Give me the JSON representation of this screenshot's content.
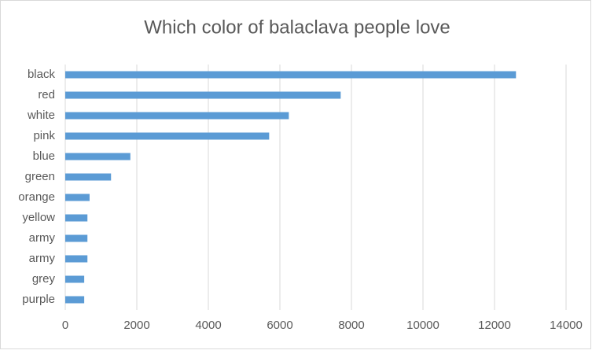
{
  "chart_data": {
    "type": "bar",
    "orientation": "horizontal",
    "title": "Which color of balaclava people love",
    "categories": [
      "black",
      "red",
      "white",
      "pink",
      "blue",
      "green",
      "orange",
      "yellow",
      "army",
      "army",
      "grey",
      "purple"
    ],
    "values": [
      12600,
      7700,
      6250,
      5700,
      1820,
      1280,
      680,
      620,
      620,
      620,
      530,
      530
    ],
    "color": "#5b9bd5",
    "xlim": [
      0,
      14000
    ],
    "xticks": [
      0,
      2000,
      4000,
      6000,
      8000,
      10000,
      12000,
      14000
    ],
    "grid": true
  }
}
